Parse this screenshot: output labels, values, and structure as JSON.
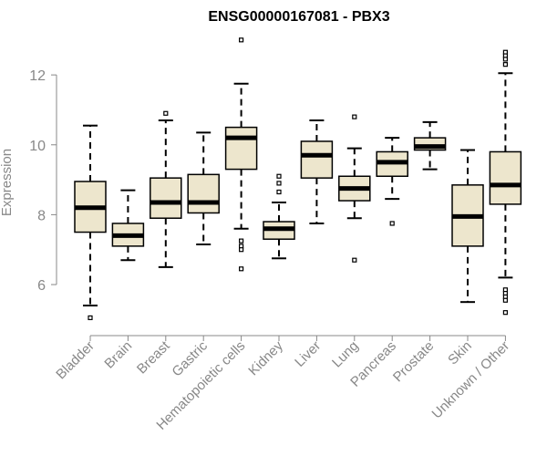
{
  "chart_data": {
    "type": "boxplot",
    "title": "ENSG00000167081 - PBX3",
    "xlabel": "",
    "ylabel": "Expression",
    "ylim": [
      4.8,
      13.1
    ],
    "yticks": [
      6,
      8,
      10,
      12
    ],
    "colors": {
      "box_fill": "#ede6cd",
      "line": "#000000",
      "axis_text": "#888888"
    },
    "categories": [
      "Bladder",
      "Brain",
      "Breast",
      "Gastric",
      "Hematopoietic cells",
      "Kidney",
      "Liver",
      "Lung",
      "Pancreas",
      "Prostate",
      "Skin",
      "Unknown / Other"
    ],
    "boxes": [
      {
        "label": "Bladder",
        "min": 5.4,
        "q1": 7.5,
        "median": 8.2,
        "q3": 8.95,
        "max": 10.55,
        "outliers": [
          5.05
        ]
      },
      {
        "label": "Brain",
        "min": 6.7,
        "q1": 7.1,
        "median": 7.4,
        "q3": 7.75,
        "max": 8.7,
        "outliers": []
      },
      {
        "label": "Breast",
        "min": 6.5,
        "q1": 7.9,
        "median": 8.35,
        "q3": 9.05,
        "max": 10.7,
        "outliers": [
          10.9
        ]
      },
      {
        "label": "Gastric",
        "min": 7.15,
        "q1": 8.05,
        "median": 8.35,
        "q3": 9.15,
        "max": 10.35,
        "outliers": []
      },
      {
        "label": "Hematopoietic cells",
        "min": 7.6,
        "q1": 9.3,
        "median": 10.2,
        "q3": 10.5,
        "max": 11.75,
        "outliers": [
          13.0,
          7.25,
          7.1,
          7.0,
          6.45
        ]
      },
      {
        "label": "Kidney",
        "min": 6.75,
        "q1": 7.3,
        "median": 7.6,
        "q3": 7.8,
        "max": 8.35,
        "outliers": [
          9.1,
          8.9,
          8.65
        ]
      },
      {
        "label": "Liver",
        "min": 7.75,
        "q1": 9.05,
        "median": 9.7,
        "q3": 10.1,
        "max": 10.7,
        "outliers": []
      },
      {
        "label": "Lung",
        "min": 7.9,
        "q1": 8.4,
        "median": 8.75,
        "q3": 9.1,
        "max": 9.9,
        "outliers": [
          10.8,
          6.7
        ]
      },
      {
        "label": "Pancreas",
        "min": 8.45,
        "q1": 9.1,
        "median": 9.5,
        "q3": 9.8,
        "max": 10.2,
        "outliers": [
          7.75
        ]
      },
      {
        "label": "Prostate",
        "min": 9.3,
        "q1": 9.85,
        "median": 9.95,
        "q3": 10.2,
        "max": 10.65,
        "outliers": []
      },
      {
        "label": "Skin",
        "min": 5.5,
        "q1": 7.1,
        "median": 7.95,
        "q3": 8.85,
        "max": 9.85,
        "outliers": []
      },
      {
        "label": "Unknown / Other",
        "min": 6.2,
        "q1": 8.3,
        "median": 8.85,
        "q3": 9.8,
        "max": 12.05,
        "outliers": [
          12.65,
          12.55,
          12.45,
          12.3,
          5.85,
          5.75,
          5.65,
          5.55,
          5.2
        ]
      }
    ]
  }
}
